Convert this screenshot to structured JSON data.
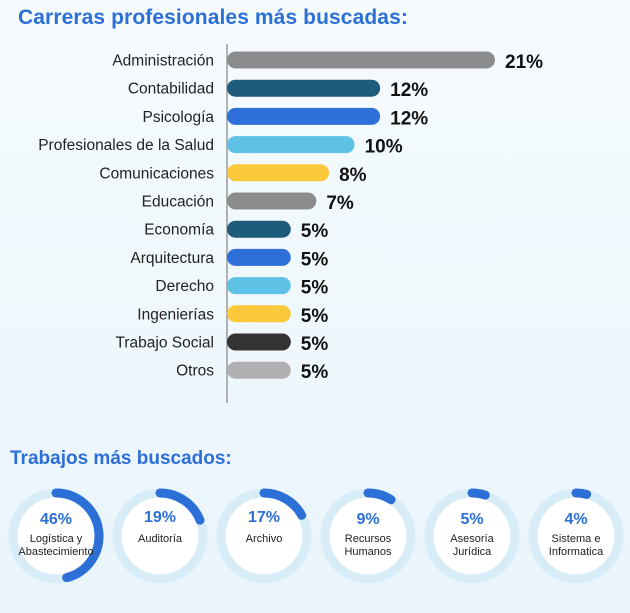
{
  "chart_data": [
    {
      "type": "bar",
      "orientation": "horizontal",
      "title": "Carreras profesionales más buscadas:",
      "categories": [
        "Administración",
        "Contabilidad",
        "Psicología",
        "Profesionales de la Salud",
        "Comunicaciones",
        "Educación",
        "Economía",
        "Arquitectura",
        "Derecho",
        "Ingenierías",
        "Trabajo Social",
        "Otros"
      ],
      "values": [
        21,
        12,
        12,
        10,
        8,
        7,
        5,
        5,
        5,
        5,
        5,
        5
      ],
      "value_labels": [
        "21%",
        "12%",
        "12%",
        "10%",
        "8%",
        "7%",
        "5%",
        "5%",
        "5%",
        "5%",
        "5%",
        "5%"
      ],
      "colors": [
        "#8c8c8e",
        "#1f5b7a",
        "#2e6fd9",
        "#5ec1e6",
        "#fcc93a",
        "#8c8c8e",
        "#1f5b7a",
        "#2e6fd9",
        "#5ec1e6",
        "#fcc93a",
        "#333333",
        "#b0b0b2"
      ],
      "unit": "%",
      "xlim": [
        0,
        21
      ]
    },
    {
      "type": "pie",
      "style": "donut-gauges",
      "title": "Trabajos más buscados:",
      "items": [
        {
          "label_lines": [
            "Logística y",
            "Abastecimiento"
          ],
          "value": 46,
          "value_label": "46%"
        },
        {
          "label_lines": [
            "Auditoría"
          ],
          "value": 19,
          "value_label": "19%"
        },
        {
          "label_lines": [
            "Archivo"
          ],
          "value": 17,
          "value_label": "17%"
        },
        {
          "label_lines": [
            "Recursos",
            "Humanos"
          ],
          "value": 9,
          "value_label": "9%"
        },
        {
          "label_lines": [
            "Asesoría",
            "Jurídica"
          ],
          "value": 5,
          "value_label": "5%"
        },
        {
          "label_lines": [
            "Sistema e",
            "Informatica"
          ],
          "value": 4,
          "value_label": "4%"
        }
      ],
      "ring_color": "#d8ecf8",
      "arc_color": "#2c6fd6"
    }
  ],
  "colors": {
    "title": "#2c6fd6",
    "axis": "#9a9a9a"
  }
}
